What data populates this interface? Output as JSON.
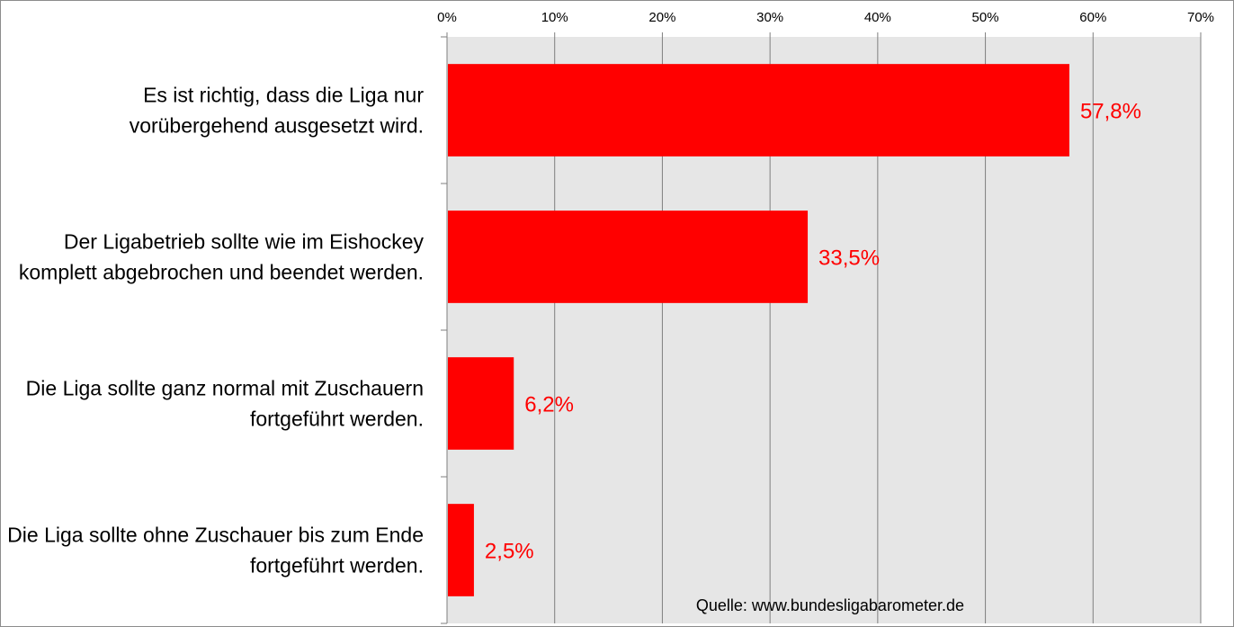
{
  "chart_data": {
    "type": "bar",
    "orientation": "horizontal",
    "categories": [
      [
        "Es ist richtig, dass die Liga nur",
        "vorübergehend ausgesetzt wird."
      ],
      [
        "Der Ligabetrieb sollte wie im Eishockey",
        "komplett abgebrochen und beendet werden."
      ],
      [
        "Die Liga sollte ganz normal mit Zuschauern",
        "fortgeführt werden."
      ],
      [
        "Die Liga sollte ohne Zuschauer bis zum Ende",
        "fortgeführt werden."
      ]
    ],
    "values": [
      57.8,
      33.5,
      6.2,
      2.5
    ],
    "data_labels": [
      "57,8%",
      "33,5%",
      "6,2%",
      "2,5%"
    ],
    "xlim": [
      0,
      70
    ],
    "x_ticks": [
      0,
      10,
      20,
      30,
      40,
      50,
      60,
      70
    ],
    "x_tick_labels": [
      "0%",
      "10%",
      "20%",
      "30%",
      "40%",
      "50%",
      "60%",
      "70%"
    ],
    "x_axis_position": "top",
    "grid": true,
    "legend": "none",
    "source": "Quelle: www.bundesligabarometer.de",
    "colors": {
      "bar": "#ff0000",
      "data_label": "#ff0000",
      "plot_background": "#e6e6e6",
      "grid": "#7f7f7f",
      "frame": "#8c8c8c"
    }
  }
}
